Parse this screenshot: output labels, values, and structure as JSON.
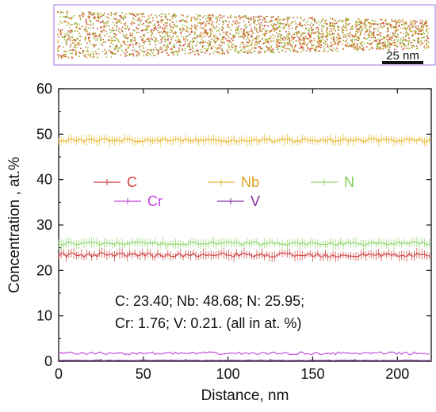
{
  "reconstruction": {
    "scale_bar_label": "25 nm",
    "box_color": "#a070e0",
    "particle_colors": [
      "#c8a020",
      "#d04030",
      "#90c040",
      "#b87828"
    ]
  },
  "chart_data": {
    "type": "line",
    "xlabel": "Distance, nm",
    "ylabel": "Concentration , at.%",
    "xlim": [
      0,
      220
    ],
    "ylim": [
      0,
      60
    ],
    "xticks": [
      0,
      50,
      100,
      150,
      200
    ],
    "yticks": [
      0,
      10,
      20,
      30,
      40,
      50,
      60
    ],
    "grid": false,
    "legend_placement": "center",
    "series": [
      {
        "name": "C",
        "color": "#d03c3c",
        "label_color": "#d03c3c",
        "mean": 23.4,
        "noise": 0.5
      },
      {
        "name": "Nb",
        "color": "#e8b830",
        "label_color": "#e0a020",
        "mean": 48.68,
        "noise": 0.4
      },
      {
        "name": "N",
        "color": "#8ed46a",
        "label_color": "#80d050",
        "mean": 25.95,
        "noise": 0.4
      },
      {
        "name": "Cr",
        "color": "#c040e0",
        "label_color": "#c040e0",
        "mean": 1.76,
        "noise": 0.3
      },
      {
        "name": "V",
        "color": "#8030a0",
        "label_color": "#8030a0",
        "mean": 0.21,
        "noise": 0.08
      }
    ],
    "annotation_lines": [
      "C: 23.40; Nb: 48.68; N: 25.95;",
      "Cr: 1.76; V: 0.21. (all in at. %)"
    ]
  }
}
